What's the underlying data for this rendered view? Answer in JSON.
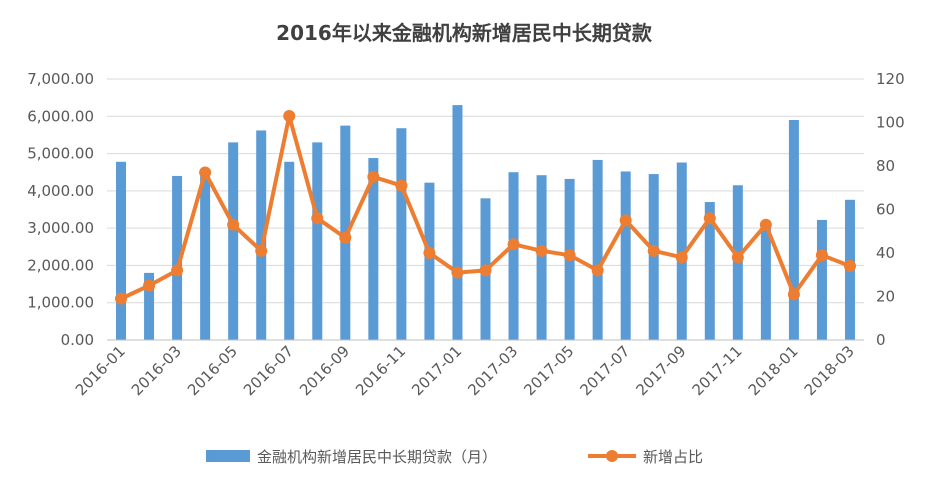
{
  "chart_data": {
    "type": "bar+line",
    "title": "2016年以来金融机构新增居民中长期贷款",
    "categories": [
      "2016-01",
      "2016-02",
      "2016-03",
      "2016-04",
      "2016-05",
      "2016-06",
      "2016-07",
      "2016-08",
      "2016-09",
      "2016-10",
      "2016-11",
      "2016-12",
      "2017-01",
      "2017-02",
      "2017-03",
      "2017-04",
      "2017-05",
      "2017-06",
      "2017-07",
      "2017-08",
      "2017-09",
      "2017-10",
      "2017-11",
      "2017-12",
      "2018-01",
      "2018-02",
      "2018-03"
    ],
    "x_tick_labels": [
      "2016-01",
      "2016-03",
      "2016-05",
      "2016-07",
      "2016-09",
      "2016-11",
      "2017-01",
      "2017-03",
      "2017-05",
      "2017-07",
      "2017-09",
      "2017-11",
      "2018-01",
      "2018-03"
    ],
    "y_left": {
      "ylim": [
        0,
        7000
      ],
      "ticks": [
        "0.00",
        "1,000.00",
        "2,000.00",
        "3,000.00",
        "4,000.00",
        "5,000.00",
        "6,000.00",
        "7,000.00"
      ]
    },
    "y_right": {
      "ylim": [
        0,
        120
      ],
      "ticks": [
        "0",
        "20",
        "40",
        "60",
        "80",
        "100",
        "120"
      ]
    },
    "grid": "horizontal",
    "legend_position": "bottom",
    "series": [
      {
        "name": "金融机构新增居民中长期贷款（月）",
        "type": "bar",
        "axis": "left",
        "color": "#5B9BD5",
        "values": [
          4780,
          1800,
          4400,
          4400,
          5300,
          5620,
          4780,
          5300,
          5750,
          4880,
          5680,
          4220,
          6300,
          3800,
          4500,
          4420,
          4320,
          4830,
          4520,
          4450,
          4760,
          3700,
          4150,
          3110,
          5900,
          3220,
          3760
        ]
      },
      {
        "name": "新增占比",
        "type": "line",
        "axis": "right",
        "color": "#ED7D31",
        "values": [
          19,
          25,
          32,
          77,
          53,
          41,
          103,
          56,
          47,
          75,
          71,
          40,
          31,
          32,
          44,
          41,
          39,
          32,
          55,
          41,
          38,
          56,
          38,
          53,
          21,
          39,
          34
        ]
      }
    ]
  }
}
